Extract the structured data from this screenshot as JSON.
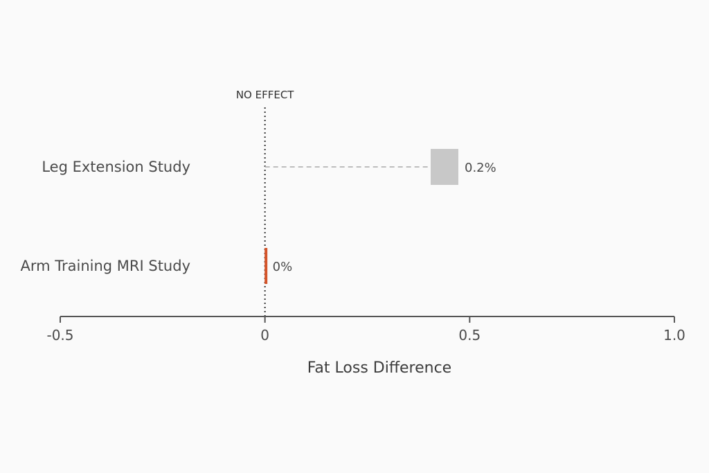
{
  "chart_data": {
    "type": "forest",
    "categories": [
      "Leg Extension Study",
      "Arm Training MRI Study"
    ],
    "values": [
      0.2,
      0
    ],
    "value_labels": [
      "0.2%",
      "0%"
    ],
    "colors": [
      "#c8c8c8",
      "#d4542a"
    ],
    "xlabel": "Fat Loss Difference",
    "xlim": [
      -0.5,
      1.0
    ],
    "xticks": [
      -0.5,
      0,
      0.5,
      1.0
    ],
    "xtick_labels": [
      "-0.5",
      "0",
      "0.5",
      "1.0"
    ],
    "reference_line": {
      "value": 0,
      "label": "NO EFFECT"
    },
    "grid": false
  }
}
